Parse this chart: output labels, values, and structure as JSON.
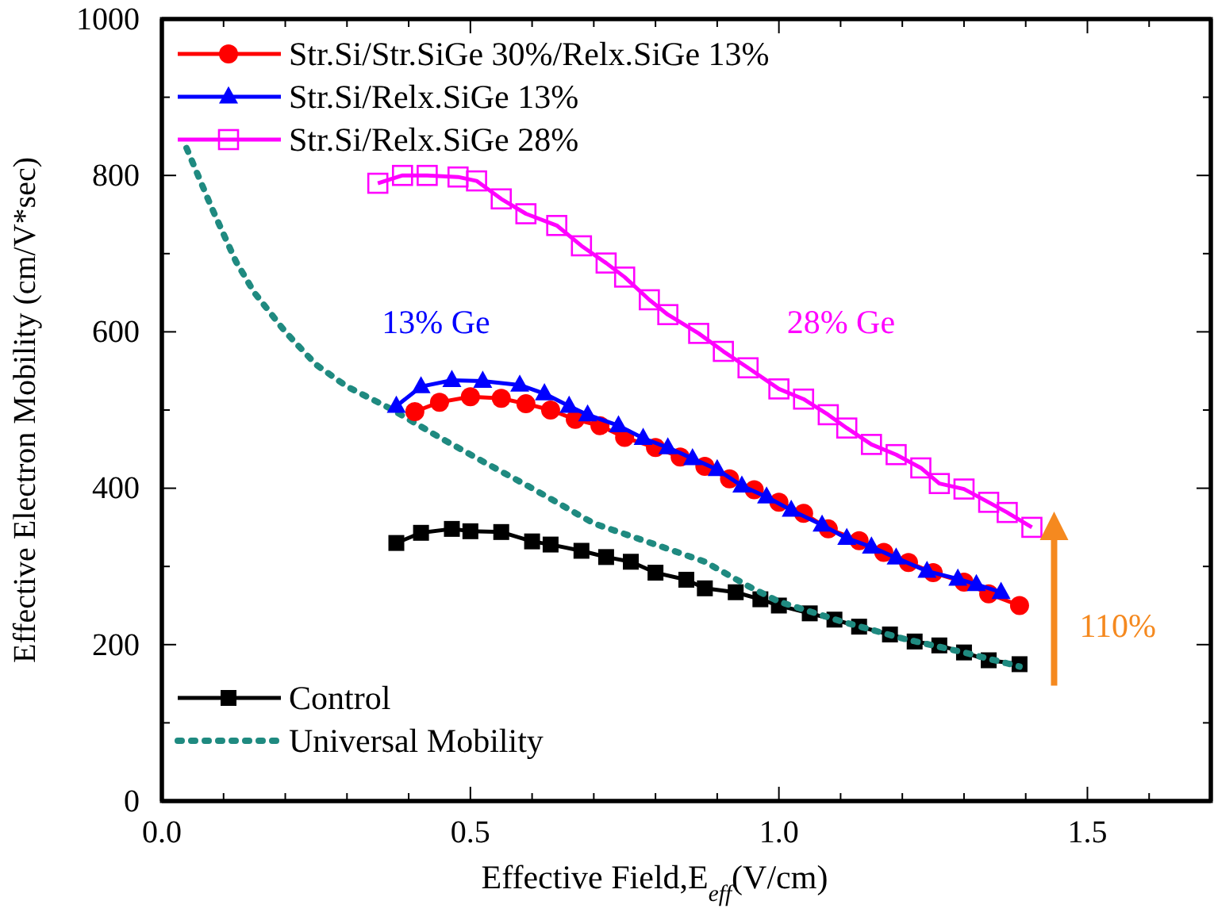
{
  "chart_data": {
    "type": "line",
    "xlabel": "Effective Field,E$_{eff}$(V/cm)",
    "ylabel": "Effective Electron Mobility (cm/V*sec)",
    "xlim": [
      0,
      1.7
    ],
    "xticks": [
      {
        "value": 0,
        "label": "0.0"
      },
      {
        "value": 0.1,
        "label": null
      },
      {
        "value": 0.2,
        "label": null
      },
      {
        "value": 0.3,
        "label": null
      },
      {
        "value": 0.4,
        "label": null
      },
      {
        "value": 0.5,
        "label": "0.5"
      },
      {
        "value": 0.6,
        "label": null
      },
      {
        "value": 0.7,
        "label": null
      },
      {
        "value": 0.8,
        "label": null
      },
      {
        "value": 0.9,
        "label": null
      },
      {
        "value": 1,
        "label": "1.0"
      },
      {
        "value": 1.1,
        "label": null
      },
      {
        "value": 1.2,
        "label": null
      },
      {
        "value": 1.3,
        "label": null
      },
      {
        "value": 1.4,
        "label": null
      },
      {
        "value": 1.5,
        "label": "1.5"
      },
      {
        "value": 1.6,
        "label": null
      }
    ],
    "ylim": [
      0,
      1000
    ],
    "yticks": [
      0,
      {
        "value": 100,
        "label": null
      },
      200,
      {
        "value": 300,
        "label": null
      },
      400,
      {
        "value": 500,
        "label": null
      },
      600,
      {
        "value": 700,
        "label": null
      },
      800,
      {
        "value": 900,
        "label": null
      },
      1000
    ],
    "grid": false,
    "legend": "top left",
    "line_style": "solid",
    "series": [
      {
        "name": "Str.Si/Str.SiGe 30%/Relx.SiGe 13%",
        "color": "#ff0000",
        "marker": "circle",
        "x": [
          0.41,
          0.45,
          0.5,
          0.55,
          0.59,
          0.63,
          0.67,
          0.71,
          0.75,
          0.8,
          0.84,
          0.88,
          0.92,
          0.96,
          1.0,
          1.04,
          1.08,
          1.13,
          1.17,
          1.21,
          1.25,
          1.3,
          1.34,
          1.39
        ],
        "values": [
          498,
          510,
          517,
          515,
          508,
          500,
          488,
          480,
          465,
          452,
          440,
          428,
          412,
          398,
          382,
          368,
          348,
          333,
          318,
          305,
          292,
          280,
          265,
          250
        ]
      },
      {
        "name": "Str.Si/Relx.SiGe 13%",
        "color": "#0000ff",
        "marker": "triangle",
        "x": [
          0.38,
          0.42,
          0.47,
          0.52,
          0.58,
          0.62,
          0.66,
          0.69,
          0.74,
          0.78,
          0.82,
          0.86,
          0.9,
          0.94,
          0.98,
          1.02,
          1.07,
          1.11,
          1.15,
          1.19,
          1.24,
          1.29,
          1.32,
          1.36
        ],
        "values": [
          505,
          530,
          538,
          537,
          532,
          521,
          505,
          494,
          480,
          464,
          452,
          438,
          424,
          403,
          389,
          372,
          353,
          336,
          325,
          311,
          294,
          284,
          277,
          267
        ]
      },
      {
        "name": "Str.Si/Relx.SiGe 28%",
        "color": "#ff00ff",
        "marker": "square-open",
        "x": [
          0.35,
          0.39,
          0.43,
          0.48,
          0.51,
          0.55,
          0.59,
          0.64,
          0.68,
          0.72,
          0.75,
          0.79,
          0.82,
          0.87,
          0.91,
          0.95,
          1.0,
          1.04,
          1.08,
          1.11,
          1.15,
          1.19,
          1.23,
          1.26,
          1.3,
          1.34,
          1.37,
          1.41
        ],
        "values": [
          790,
          800,
          800,
          798,
          793,
          770,
          751,
          736,
          710,
          688,
          670,
          641,
          622,
          598,
          575,
          554,
          527,
          514,
          494,
          477,
          456,
          443,
          426,
          406,
          399,
          382,
          369,
          350
        ]
      },
      {
        "name": "Control",
        "color": "#000000",
        "marker": "square",
        "x": [
          0.38,
          0.42,
          0.47,
          0.5,
          0.55,
          0.6,
          0.63,
          0.68,
          0.72,
          0.76,
          0.8,
          0.85,
          0.88,
          0.93,
          0.97,
          1.0,
          1.05,
          1.09,
          1.13,
          1.18,
          1.22,
          1.26,
          1.3,
          1.34,
          1.39
        ],
        "values": [
          330,
          343,
          348,
          345,
          344,
          332,
          328,
          320,
          312,
          306,
          292,
          283,
          272,
          267,
          258,
          250,
          240,
          232,
          223,
          213,
          204,
          199,
          190,
          180,
          175
        ]
      },
      {
        "name": "Universal Mobility",
        "color": "#1f8a80",
        "marker": "none",
        "line_style": "dotted",
        "x": [
          0.04,
          0.08,
          0.12,
          0.15,
          0.2,
          0.25,
          0.3,
          0.37,
          0.45,
          0.53,
          0.6,
          0.7,
          0.8,
          0.88,
          0.95,
          1.0,
          1.1,
          1.2,
          1.3,
          1.39
        ],
        "values": [
          835,
          760,
          690,
          650,
          600,
          558,
          530,
          502,
          465,
          430,
          400,
          355,
          328,
          306,
          275,
          255,
          230,
          208,
          190,
          172
        ]
      }
    ],
    "annotations": [
      "13% Ge",
      "28% Ge",
      "110%"
    ]
  }
}
